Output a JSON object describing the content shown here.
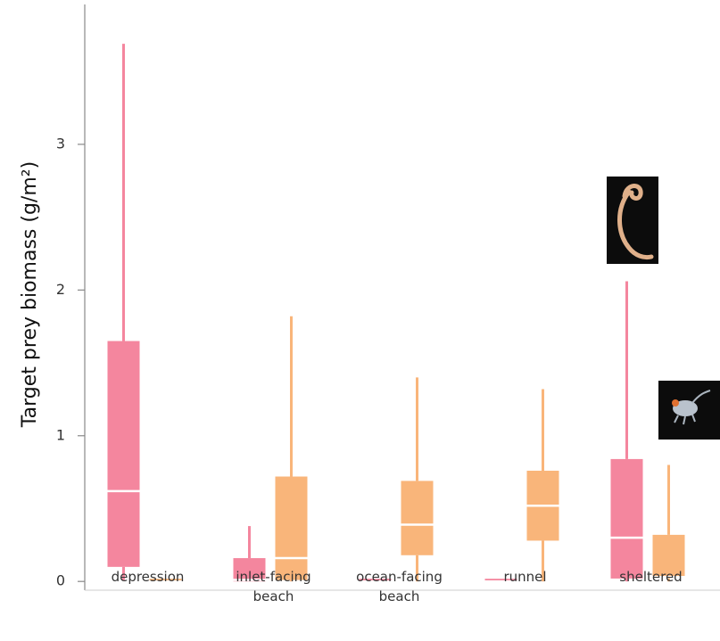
{
  "chart_data": {
    "type": "box",
    "y_label": "Target prey biomass (g/m²)",
    "categories": [
      "depression",
      "inlet-facing beach",
      "ocean-facing beach",
      "runnel",
      "sheltered"
    ],
    "ylim": [
      -0.06,
      3.96
    ],
    "yticks": [
      0,
      1,
      2,
      3
    ],
    "series": [
      {
        "color": "#f4869e",
        "min": [
          0.01,
          0,
          0,
          0,
          0
        ],
        "q1": [
          0.1,
          0,
          0,
          0,
          0.02
        ],
        "median": [
          0.62,
          0.01,
          0,
          0,
          0.3
        ],
        "q3": [
          1.65,
          0.16,
          0.01,
          0.01,
          0.84
        ],
        "max": [
          3.69,
          0.38,
          0.01,
          0.01,
          2.06
        ]
      },
      {
        "color": "#f9b57a",
        "min": [
          0,
          0,
          0,
          0,
          0
        ],
        "q1": [
          0,
          0.01,
          0.18,
          0.28,
          0.03
        ],
        "median": [
          0,
          0.16,
          0.39,
          0.52,
          0.03
        ],
        "q3": [
          0.01,
          0.72,
          0.69,
          0.76,
          0.32
        ],
        "max": [
          0.01,
          1.82,
          1.4,
          1.32,
          0.8
        ]
      }
    ]
  }
}
